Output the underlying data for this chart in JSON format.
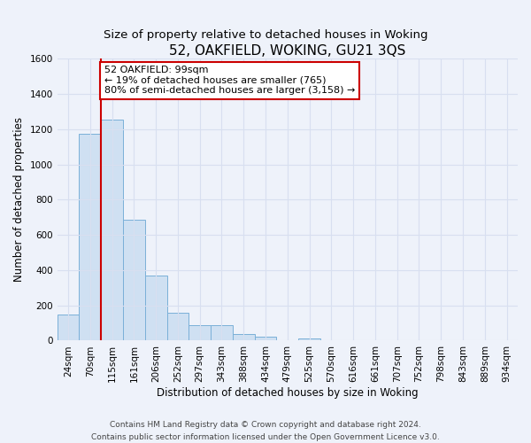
{
  "title": "52, OAKFIELD, WOKING, GU21 3QS",
  "subtitle": "Size of property relative to detached houses in Woking",
  "xlabel": "Distribution of detached houses by size in Woking",
  "ylabel": "Number of detached properties",
  "bin_labels": [
    "24sqm",
    "70sqm",
    "115sqm",
    "161sqm",
    "206sqm",
    "252sqm",
    "297sqm",
    "343sqm",
    "388sqm",
    "434sqm",
    "479sqm",
    "525sqm",
    "570sqm",
    "616sqm",
    "661sqm",
    "707sqm",
    "752sqm",
    "798sqm",
    "843sqm",
    "889sqm",
    "934sqm"
  ],
  "bar_values": [
    150,
    1175,
    1255,
    685,
    370,
    160,
    90,
    90,
    40,
    22,
    0,
    10,
    0,
    0,
    0,
    0,
    0,
    0,
    0,
    0,
    0
  ],
  "bar_color": "#cfe0f2",
  "bar_edge_color": "#7ab0d8",
  "vline_x_idx": 1.5,
  "vline_color": "#cc0000",
  "annotation_title": "52 OAKFIELD: 99sqm",
  "annotation_line1": "← 19% of detached houses are smaller (765)",
  "annotation_line2": "80% of semi-detached houses are larger (3,158) →",
  "annotation_box_color": "#ffffff",
  "annotation_box_edge": "#cc0000",
  "ylim": [
    0,
    1600
  ],
  "yticks": [
    0,
    200,
    400,
    600,
    800,
    1000,
    1200,
    1400,
    1600
  ],
  "footer1": "Contains HM Land Registry data © Crown copyright and database right 2024.",
  "footer2": "Contains public sector information licensed under the Open Government Licence v3.0.",
  "bg_color": "#eef2fa",
  "grid_color": "#d8dff0",
  "title_fontsize": 11,
  "subtitle_fontsize": 9.5,
  "axis_label_fontsize": 8.5,
  "tick_fontsize": 7.5,
  "footer_fontsize": 6.5,
  "annotation_fontsize": 8
}
